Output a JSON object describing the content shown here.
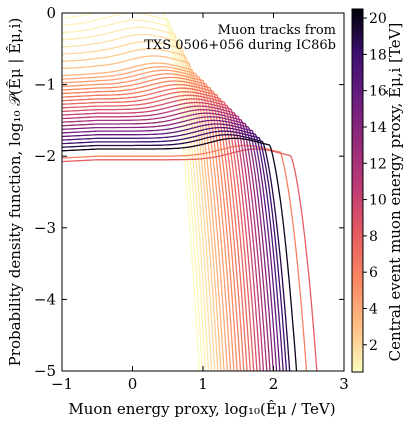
{
  "chart_data": {
    "type": "line",
    "annotation_lines": [
      "Muon tracks from",
      "TXS 0506+056 during IC86b"
    ],
    "xlabel": "Muon energy proxy, log₁₀(Êμ / TeV)",
    "ylabel": "Probability density function, log₁₀ 𝒫(Êμ | Êμ,i)",
    "colorbar_label": "Central event muon energy proxy, Êμ,i [TeV]",
    "xlim": [
      -1,
      3
    ],
    "ylim": [
      -5,
      0
    ],
    "xticks": [
      "−1",
      "0",
      "1",
      "2",
      "3"
    ],
    "yticks": [
      "−5",
      "−4",
      "−3",
      "−2",
      "−1",
      "0"
    ],
    "colorbar_range": [
      0.5,
      20.5
    ],
    "colorbar_ticks": [
      "2",
      "4",
      "6",
      "8",
      "10",
      "12",
      "14",
      "16",
      "18",
      "20"
    ],
    "colormap": "magma",
    "grid": false,
    "series_description": "one PDF curve per muon track, colored by central event energy proxy",
    "series": [
      {
        "energy_tev": 0.6,
        "plateau": -0.05,
        "cutoff": 0.45
      },
      {
        "energy_tev": 0.8,
        "plateau": -0.15,
        "cutoff": 0.5
      },
      {
        "energy_tev": 1.0,
        "plateau": -0.25,
        "cutoff": 0.55
      },
      {
        "energy_tev": 1.3,
        "plateau": -0.35,
        "cutoff": 0.6
      },
      {
        "energy_tev": 1.6,
        "plateau": -0.45,
        "cutoff": 0.65
      },
      {
        "energy_tev": 2.0,
        "plateau": -0.55,
        "cutoff": 0.7
      },
      {
        "energy_tev": 2.5,
        "plateau": -0.65,
        "cutoff": 0.75
      },
      {
        "energy_tev": 3.0,
        "plateau": -0.75,
        "cutoff": 0.8
      },
      {
        "energy_tev": 3.5,
        "plateau": -0.85,
        "cutoff": 0.85
      },
      {
        "energy_tev": 4.0,
        "plateau": -0.9,
        "cutoff": 0.9
      },
      {
        "energy_tev": 4.5,
        "plateau": -0.95,
        "cutoff": 0.95
      },
      {
        "energy_tev": 5.0,
        "plateau": -1.0,
        "cutoff": 1.0
      },
      {
        "energy_tev": 5.5,
        "plateau": -1.05,
        "cutoff": 1.05
      },
      {
        "energy_tev": 6.0,
        "plateau": -1.1,
        "cutoff": 1.1
      },
      {
        "energy_tev": 6.5,
        "plateau": -1.15,
        "cutoff": 1.15
      },
      {
        "energy_tev": 7.0,
        "plateau": -1.2,
        "cutoff": 1.2
      },
      {
        "energy_tev": 7.5,
        "plateau": -1.25,
        "cutoff": 1.25
      },
      {
        "energy_tev": 8.0,
        "plateau": -1.3,
        "cutoff": 1.3
      },
      {
        "energy_tev": 9.0,
        "plateau": -1.35,
        "cutoff": 1.35
      },
      {
        "energy_tev": 10.0,
        "plateau": -1.4,
        "cutoff": 1.4
      },
      {
        "energy_tev": 11.0,
        "plateau": -1.45,
        "cutoff": 1.45
      },
      {
        "energy_tev": 12.0,
        "plateau": -1.5,
        "cutoff": 1.5
      },
      {
        "energy_tev": 13.0,
        "plateau": -1.55,
        "cutoff": 1.55
      },
      {
        "energy_tev": 14.0,
        "plateau": -1.6,
        "cutoff": 1.6
      },
      {
        "energy_tev": 15.0,
        "plateau": -1.65,
        "cutoff": 1.65
      },
      {
        "energy_tev": 16.0,
        "plateau": -1.7,
        "cutoff": 1.7
      },
      {
        "energy_tev": 17.0,
        "plateau": -1.75,
        "cutoff": 1.75
      },
      {
        "energy_tev": 18.0,
        "plateau": -1.8,
        "cutoff": 1.8
      },
      {
        "energy_tev": 19.0,
        "plateau": -1.85,
        "cutoff": 1.85
      },
      {
        "energy_tev": 20.0,
        "plateau": -1.9,
        "cutoff": 1.95
      },
      {
        "energy_tev": 6.0,
        "plateau": -2.0,
        "cutoff": 2.1
      },
      {
        "energy_tev": 8.0,
        "plateau": -2.05,
        "cutoff": 2.25
      }
    ]
  }
}
